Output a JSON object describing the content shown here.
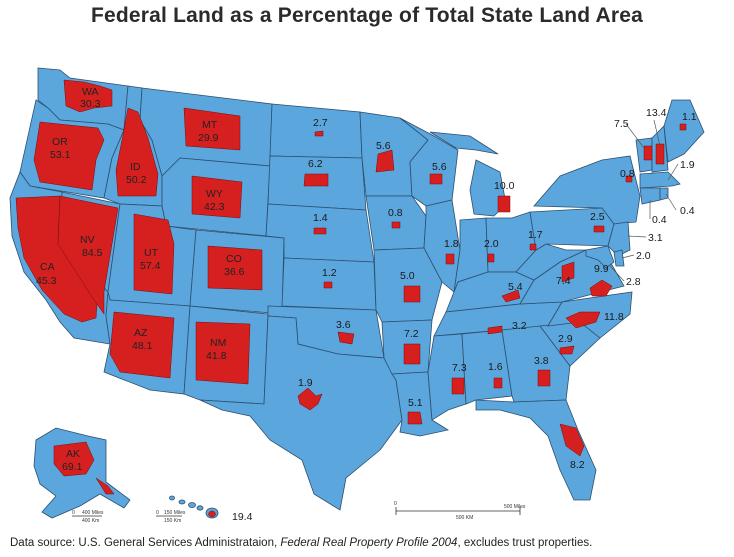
{
  "title": "Federal Land as a Percentage of Total State Land Area",
  "colors": {
    "state": "#5aa6dd",
    "federal": "#d62020",
    "border": "#2e4f6e"
  },
  "source": {
    "prefix": "Data source: U.S. General Services Administrataion, ",
    "publication": "Federal Real Property Profile 2004",
    "suffix": ", excludes trust properties."
  },
  "states": [
    {
      "abbr": "WA",
      "value": "30.3"
    },
    {
      "abbr": "OR",
      "value": "53.1"
    },
    {
      "abbr": "CA",
      "value": "45.3"
    },
    {
      "abbr": "NV",
      "value": "84.5"
    },
    {
      "abbr": "ID",
      "value": "50.2"
    },
    {
      "abbr": "MT",
      "value": "29.9"
    },
    {
      "abbr": "WY",
      "value": "42.3"
    },
    {
      "abbr": "UT",
      "value": "57.4"
    },
    {
      "abbr": "CO",
      "value": "36.6"
    },
    {
      "abbr": "AZ",
      "value": "48.1"
    },
    {
      "abbr": "NM",
      "value": "41.8"
    },
    {
      "abbr": "AK",
      "value": "69.1"
    }
  ],
  "values": {
    "nd": "2.7",
    "sd": "6.2",
    "ne": "1.4",
    "ks": "1.2",
    "ok": "3.6",
    "tx": "1.9",
    "mn": "5.6",
    "ia": "0.8",
    "mo": "5.0",
    "ar": "7.2",
    "la": "5.1",
    "wi": "5.6",
    "il": "1.8",
    "ms": "7.3",
    "mi": "10.0",
    "in": "2.0",
    "oh": "1.7",
    "ky": "5.4",
    "tn": "3.2",
    "al": "1.6",
    "ga": "3.8",
    "fl": "8.2",
    "sc": "2.9",
    "nc": "11.8",
    "va": "9.9",
    "wv": "7.4",
    "pa": "2.5",
    "ny": "0.8",
    "vt": "7.5",
    "nh": "13.4",
    "me": "1.1",
    "ma": "1.9",
    "ri": "0.4",
    "ct": "0.4",
    "nj": "3.1",
    "de": "2.0",
    "md": "2.8",
    "hi": "19.4"
  },
  "scale": {
    "main_top": "500 Miles",
    "main_bottom": "500 KM",
    "zero": "0",
    "ak_top": "400 Miles",
    "ak_bottom": "400 Km",
    "hi_top": "150 Miles",
    "hi_bottom": "150 Km"
  }
}
